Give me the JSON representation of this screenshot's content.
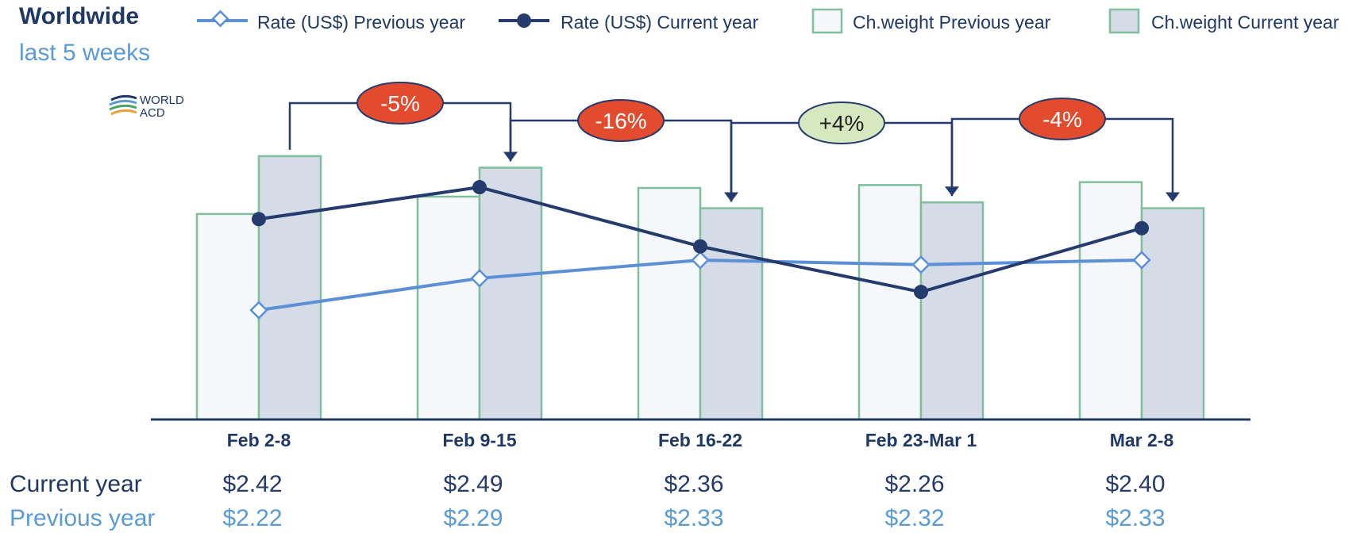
{
  "chart_data": {
    "type": "bar+line",
    "title": "Worldwide",
    "subtitle": "last 5 weeks",
    "logo": {
      "line1": "WORLD",
      "line2": "ACD"
    },
    "categories": [
      "Feb 2-8",
      "Feb 9-15",
      "Feb 16-22",
      "Feb 23-Mar 1",
      "Mar 2-8"
    ],
    "legend": {
      "rate_prev": "Rate (US$) Previous year",
      "rate_curr": "Rate (US$) Current year",
      "weight_prev": "Ch.weight Previous year",
      "weight_curr": "Ch.weight Current year"
    },
    "series": [
      {
        "name": "Rate (US$) Previous year",
        "kind": "line",
        "values": [
          2.22,
          2.29,
          2.33,
          2.32,
          2.33
        ]
      },
      {
        "name": "Rate (US$) Current year",
        "kind": "line",
        "values": [
          2.42,
          2.49,
          2.36,
          2.26,
          2.4
        ]
      },
      {
        "name": "Ch.weight Previous year",
        "kind": "bar",
        "values": [
          71,
          77,
          80,
          81,
          82
        ]
      },
      {
        "name": "Ch.weight Current year",
        "kind": "bar",
        "values": [
          91,
          87,
          73,
          75,
          73
        ]
      }
    ],
    "rate_axis_ylim": [
      1.98,
      2.8
    ],
    "weight_axis_ylim": [
      0,
      100
    ],
    "changes": [
      "-5%",
      "-16%",
      "+4%",
      "-4%"
    ],
    "row_labels": {
      "current": "Current year",
      "previous": "Previous year"
    },
    "rates_current": [
      "$2.42",
      "$2.49",
      "$2.36",
      "$2.26",
      "$2.40"
    ],
    "rates_previous": [
      "$2.22",
      "$2.29",
      "$2.33",
      "$2.32",
      "$2.33"
    ]
  },
  "colors": {
    "title": "#1f3864",
    "subtitle": "#5b9bd5",
    "current": "#253b6e",
    "previous": "#5b8fd6",
    "bar_prev_fill": "#f5f7fa",
    "bar_curr_fill": "#d5dce8",
    "bar_border": "#7fbf9c",
    "decline": "#e34b2e",
    "growth": "#d6e8bf"
  }
}
